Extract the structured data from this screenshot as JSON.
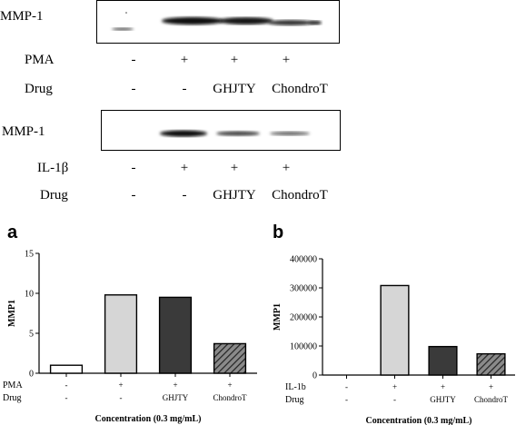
{
  "blot_top": {
    "protein_label": "MMP-1",
    "treatment_label": "PMA",
    "treatment_signs": [
      "-",
      "+",
      "+",
      "+"
    ],
    "drug_label": "Drug",
    "drug_values": [
      "-",
      "-",
      "GHJTY",
      "ChondroT"
    ]
  },
  "blot_bottom": {
    "protein_label": "MMP-1",
    "treatment_label": "IL-1β",
    "treatment_signs": [
      "-",
      "+",
      "+",
      "+"
    ],
    "drug_label": "Drug",
    "drug_values": [
      "-",
      "-",
      "GHJTY",
      "ChondroT"
    ]
  },
  "chart_data": [
    {
      "panel": "a",
      "type": "bar",
      "ylabel": "MMP1",
      "xlabel": "Concentration (0.3 mg/mL)",
      "ylim": [
        0,
        15
      ],
      "yticks": [
        "0",
        "5",
        "10",
        "15"
      ],
      "row1_label": "PMA",
      "row1_values": [
        "-",
        "+",
        "+",
        "+"
      ],
      "row2_label": "Drug",
      "row2_values": [
        "-",
        "-",
        "GHJTY",
        "ChondroT"
      ],
      "values": [
        1.0,
        9.8,
        9.5,
        3.7
      ],
      "bar_styles": [
        "white",
        "lightgray",
        "darkgray",
        "hatched"
      ]
    },
    {
      "panel": "b",
      "type": "bar",
      "ylabel": "MMP1",
      "xlabel": "Concentration (0.3 mg/mL)",
      "ylim": [
        0,
        400000
      ],
      "yticks": [
        "0",
        "100000",
        "200000",
        "300000",
        "400000"
      ],
      "row1_label": "IL-1b",
      "row1_values": [
        "-",
        "+",
        "+",
        "+"
      ],
      "row2_label": "Drug",
      "row2_values": [
        "-",
        "-",
        "GHJTY",
        "ChondroT"
      ],
      "values": [
        0,
        308000,
        98000,
        73000
      ],
      "bar_styles": [
        "white",
        "lightgray",
        "darkgray",
        "hatched"
      ]
    }
  ]
}
